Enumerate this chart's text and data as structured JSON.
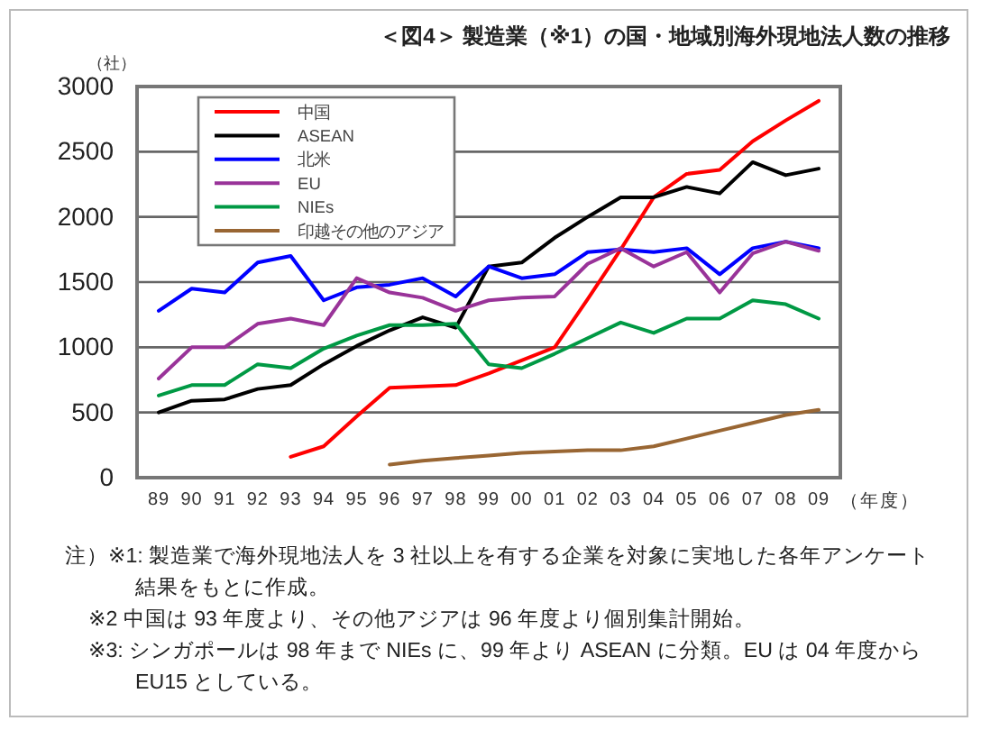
{
  "chart_data": {
    "type": "line",
    "title": "＜図4＞ 製造業（※1）の国・地域別海外現地法人数の推移",
    "ylabel": "（社）",
    "xlabel": "（年度）",
    "categories": [
      "89",
      "90",
      "91",
      "92",
      "93",
      "94",
      "95",
      "96",
      "97",
      "98",
      "99",
      "00",
      "01",
      "02",
      "03",
      "04",
      "05",
      "06",
      "07",
      "08",
      "09"
    ],
    "ylim": [
      0,
      3000
    ],
    "yticks": [
      0,
      500,
      1000,
      1500,
      2000,
      2500,
      3000
    ],
    "grid": "y",
    "legend": "top left",
    "line_style": "solid",
    "marker": "none",
    "series": [
      {
        "name": "中国",
        "color": "#ff0000",
        "values": [
          null,
          null,
          null,
          null,
          160,
          240,
          470,
          690,
          700,
          710,
          800,
          900,
          1000,
          1370,
          1750,
          2150,
          2330,
          2360,
          2580,
          2740,
          2890
        ]
      },
      {
        "name": "ASEAN",
        "color": "#000000",
        "values": [
          500,
          590,
          600,
          680,
          710,
          870,
          1010,
          1130,
          1230,
          1150,
          1620,
          1650,
          1840,
          2000,
          2150,
          2150,
          2230,
          2180,
          2420,
          2320,
          2370
        ]
      },
      {
        "name": "北米",
        "color": "#0000ff",
        "values": [
          1280,
          1450,
          1420,
          1650,
          1700,
          1360,
          1460,
          1480,
          1530,
          1390,
          1620,
          1530,
          1560,
          1730,
          1750,
          1730,
          1760,
          1560,
          1760,
          1810,
          1760
        ]
      },
      {
        "name": "EU",
        "color": "#993399",
        "values": [
          760,
          1000,
          1000,
          1180,
          1220,
          1170,
          1530,
          1420,
          1380,
          1280,
          1360,
          1380,
          1390,
          1640,
          1760,
          1620,
          1730,
          1420,
          1720,
          1810,
          1740
        ]
      },
      {
        "name": "NIEs",
        "color": "#009944",
        "values": [
          630,
          710,
          710,
          870,
          840,
          990,
          1090,
          1170,
          1170,
          1180,
          870,
          840,
          950,
          1070,
          1190,
          1110,
          1220,
          1220,
          1360,
          1330,
          1220
        ]
      },
      {
        "name": "印越その他のアジア",
        "color": "#996633",
        "values": [
          null,
          null,
          null,
          null,
          null,
          null,
          null,
          100,
          130,
          150,
          170,
          190,
          200,
          210,
          210,
          240,
          300,
          360,
          420,
          480,
          520
        ]
      }
    ],
    "annotations": [
      "注）※1: 製造業で海外現地法人を 3 社以上を有する企業を対象に実地した各年アンケート結果をもとに作成。",
      "※2 中国は 93 年度より、その他アジアは 96 年度より個別集計開始。",
      "※3: シンガポールは 98 年まで NIEs に、99 年より ASEAN に分類。EU は 04 年度から EU15 としている。"
    ]
  }
}
